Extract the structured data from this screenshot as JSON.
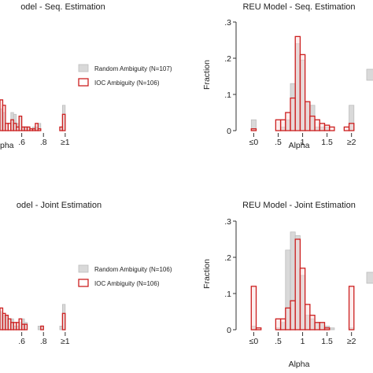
{
  "colors": {
    "random_fill": "#d9d9d9",
    "random_stroke": "#bdbdbd",
    "ioc_fill": "#fbdada",
    "ioc_stroke": "#cc1f1f",
    "axis": "#333333"
  },
  "chart_data": [
    {
      "type": "bar",
      "title": "odel - Seq. Estimation",
      "xlabel": "pha",
      "ylabel": "",
      "xticks": [
        {
          "v": 0.6,
          "label": ".6"
        },
        {
          "v": 0.8,
          "label": ".8"
        },
        {
          "v": 1.0,
          "label": "≥1"
        }
      ],
      "yticks": [],
      "xlim": [
        0.4,
        1.03
      ],
      "ylim": [
        0,
        0.3
      ],
      "bin_width": 0.025,
      "legend": {
        "entries": [
          "Random Ambiguity (N=107)",
          "IOC Ambiguity (N=106)"
        ]
      },
      "series": [
        {
          "name": "Random Ambiguity (N=107)",
          "role": "random",
          "x": [
            0.4,
            0.425,
            0.5,
            0.525,
            0.55,
            0.575,
            0.6,
            0.625,
            0.65,
            0.7,
            0.725,
            0.75,
            0.95,
            0.975
          ],
          "values": [
            0.06,
            0.05,
            0.05,
            0.045,
            0.02,
            0.04,
            0.01,
            0.01,
            0.01,
            0.01,
            0.01,
            0.02,
            0.01,
            0.07
          ]
        },
        {
          "name": "IOC Ambiguity (N=106)",
          "role": "ioc",
          "x": [
            0.4,
            0.425,
            0.45,
            0.475,
            0.5,
            0.525,
            0.55,
            0.575,
            0.6,
            0.625,
            0.65,
            0.675,
            0.7,
            0.725,
            0.75,
            0.95,
            0.975
          ],
          "values": [
            0.085,
            0.07,
            0.02,
            0.02,
            0.03,
            0.02,
            0.01,
            0.04,
            0.01,
            0.01,
            0.01,
            0.005,
            0.005,
            0.02,
            0.005,
            0.01,
            0.045
          ]
        }
      ]
    },
    {
      "type": "bar",
      "title": "REU Model - Seq. Estimation",
      "xlabel": "Alpha",
      "ylabel": "Fraction",
      "xticks": [
        {
          "v": 0,
          "label": "≤0"
        },
        {
          "v": 0.5,
          "label": ".5"
        },
        {
          "v": 1.0,
          "label": "1"
        },
        {
          "v": 1.5,
          "label": "1.5"
        },
        {
          "v": 2.0,
          "label": "≥2"
        }
      ],
      "yticks": [
        {
          "v": 0,
          "label": "0"
        },
        {
          "v": 0.1,
          "label": ".1"
        },
        {
          "v": 0.2,
          "label": ".2"
        },
        {
          "v": 0.3,
          "label": ".3"
        }
      ],
      "xlim": [
        -0.2,
        2.15
      ],
      "ylim": [
        0,
        0.3
      ],
      "bin_width": 0.1,
      "series": [
        {
          "name": "Random Ambiguity",
          "role": "random",
          "x": [
            -0.05,
            0.55,
            0.65,
            0.75,
            0.85,
            0.95,
            1.05,
            1.15,
            1.25,
            1.35,
            1.45,
            1.95
          ],
          "values": [
            0.03,
            0.01,
            0.03,
            0.13,
            0.24,
            0.195,
            0.08,
            0.07,
            0.01,
            0.01,
            0.01,
            0.07
          ]
        },
        {
          "name": "IOC Ambiguity",
          "role": "ioc",
          "x": [
            -0.05,
            0.45,
            0.55,
            0.65,
            0.75,
            0.85,
            0.95,
            1.05,
            1.15,
            1.25,
            1.35,
            1.45,
            1.55,
            1.85,
            1.95
          ],
          "values": [
            0.005,
            0.03,
            0.03,
            0.05,
            0.09,
            0.26,
            0.21,
            0.08,
            0.04,
            0.03,
            0.02,
            0.015,
            0.01,
            0.01,
            0.02
          ]
        }
      ]
    },
    {
      "type": "bar",
      "title": "odel - Joint Estimation",
      "xlabel": "",
      "ylabel": "",
      "xticks": [
        {
          "v": 0.6,
          "label": ".6"
        },
        {
          "v": 0.8,
          "label": ".8"
        },
        {
          "v": 1.0,
          "label": "≥1"
        }
      ],
      "yticks": [],
      "xlim": [
        0.4,
        1.03
      ],
      "ylim": [
        0,
        0.3
      ],
      "bin_width": 0.025,
      "legend": {
        "entries": [
          "Random Ambiguity (N=106)",
          "IOC Ambiguity (N=106)"
        ]
      },
      "series": [
        {
          "name": "Random Ambiguity (N=106)",
          "role": "random",
          "x": [
            0.4,
            0.425,
            0.45,
            0.475,
            0.5,
            0.525,
            0.55,
            0.575,
            0.6,
            0.625,
            0.75,
            0.775,
            0.95,
            0.975
          ],
          "values": [
            0.05,
            0.04,
            0.04,
            0.03,
            0.03,
            0.01,
            0.01,
            0.02,
            0.03,
            0.02,
            0.01,
            0.01,
            0.01,
            0.07
          ]
        },
        {
          "name": "IOC Ambiguity (N=106)",
          "role": "ioc",
          "x": [
            0.4,
            0.425,
            0.45,
            0.475,
            0.5,
            0.525,
            0.55,
            0.575,
            0.6,
            0.625,
            0.775,
            0.975
          ],
          "values": [
            0.06,
            0.045,
            0.04,
            0.03,
            0.02,
            0.02,
            0.02,
            0.03,
            0.015,
            0.015,
            0.01,
            0.045
          ]
        }
      ]
    },
    {
      "type": "bar",
      "title": "REU Model - Joint Estimation",
      "xlabel": "Alpha",
      "ylabel": "Fraction",
      "xticks": [
        {
          "v": 0,
          "label": "≤0"
        },
        {
          "v": 0.5,
          "label": ".5"
        },
        {
          "v": 1.0,
          "label": "1"
        },
        {
          "v": 1.5,
          "label": "1.5"
        },
        {
          "v": 2.0,
          "label": "≥2"
        }
      ],
      "yticks": [
        {
          "v": 0,
          "label": "0"
        },
        {
          "v": 0.1,
          "label": ".1"
        },
        {
          "v": 0.2,
          "label": ".2"
        },
        {
          "v": 0.3,
          "label": ".3"
        }
      ],
      "xlim": [
        -0.2,
        2.15
      ],
      "ylim": [
        0,
        0.3
      ],
      "bin_width": 0.1,
      "series": [
        {
          "name": "Random Ambiguity",
          "role": "random",
          "x": [
            -0.05,
            0.45,
            0.55,
            0.65,
            0.75,
            0.85,
            0.95,
            1.05,
            1.15,
            1.25,
            1.35,
            1.45,
            1.55,
            1.95
          ],
          "values": [
            0.01,
            0.005,
            0.02,
            0.22,
            0.27,
            0.26,
            0.15,
            0.04,
            0.03,
            0.02,
            0.02,
            0.01,
            0.005,
            0.005
          ]
        },
        {
          "name": "IOC Ambiguity",
          "role": "ioc",
          "x": [
            -0.05,
            0.05,
            0.45,
            0.55,
            0.65,
            0.75,
            0.85,
            0.95,
            1.05,
            1.15,
            1.25,
            1.35,
            1.45,
            1.95
          ],
          "values": [
            0.12,
            0.005,
            0.03,
            0.03,
            0.06,
            0.08,
            0.25,
            0.17,
            0.07,
            0.04,
            0.02,
            0.02,
            0.005,
            0.12
          ]
        }
      ]
    }
  ]
}
